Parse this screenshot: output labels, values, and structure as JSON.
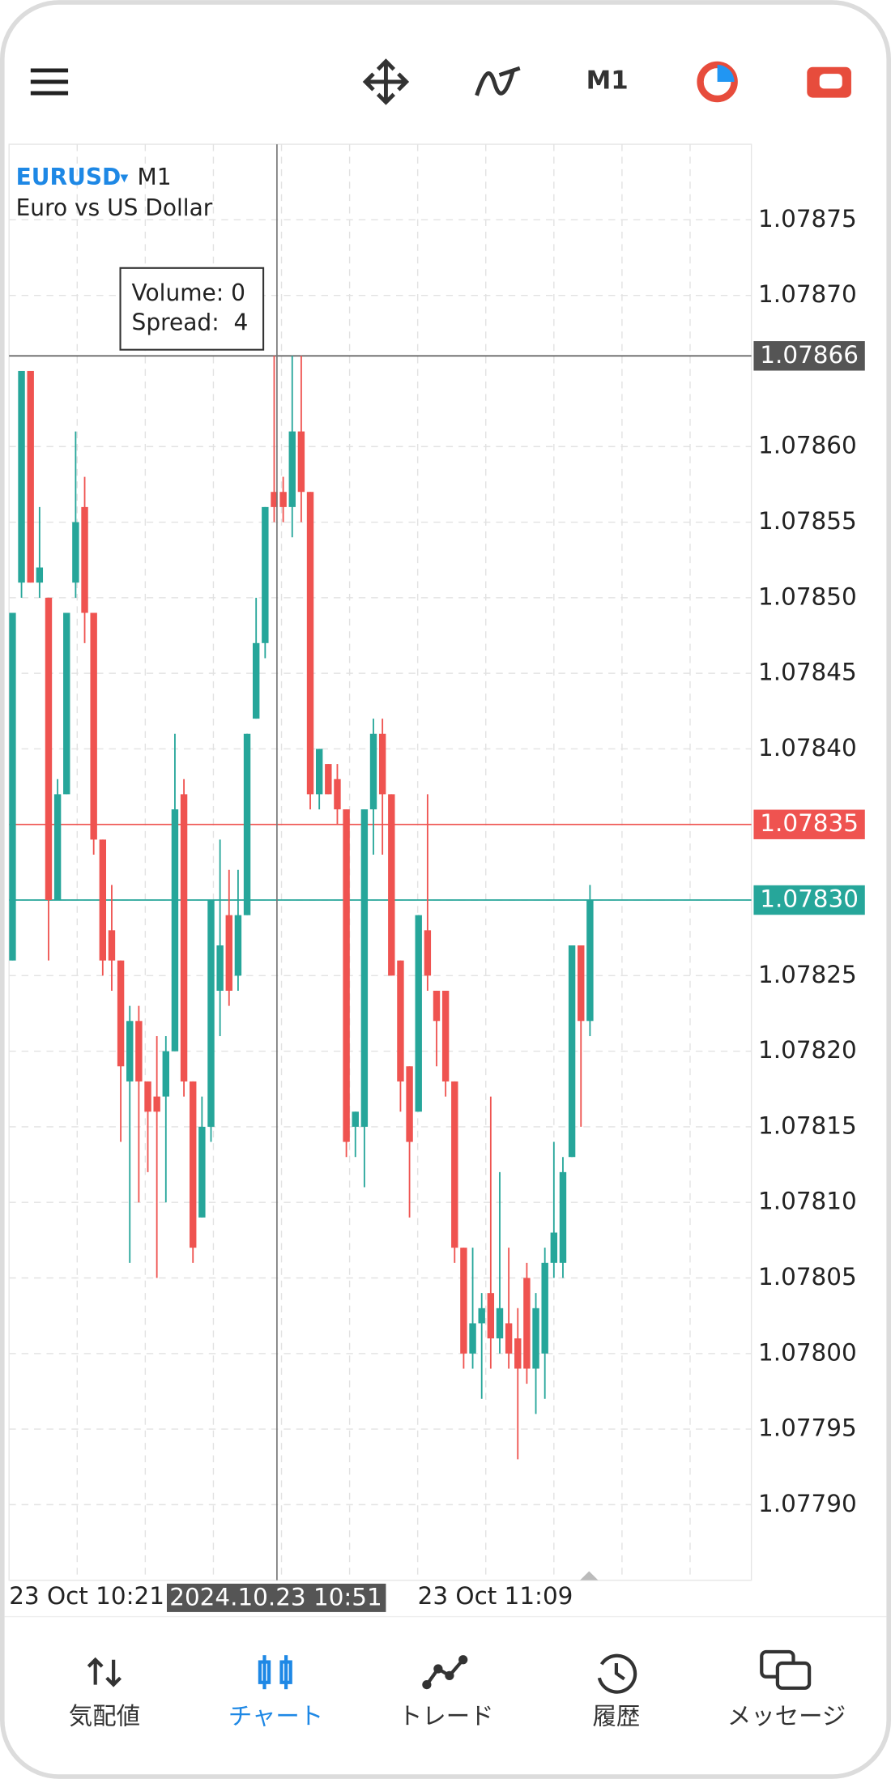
{
  "top_bar": {
    "timeframe": "M1"
  },
  "chart_data": {
    "type": "candlestick",
    "symbol": "EURUSD",
    "symbol_marker": "▾",
    "timeframe": "M1",
    "description": "Euro vs US Dollar",
    "colors": {
      "up": "#26a69a",
      "down": "#ef5350"
    },
    "grid": true,
    "ylim": [
      1.07785,
      1.0788
    ],
    "yticks": [
      1.07875,
      {
        "value": 1.0787,
        "label": "1.07870"
      },
      {
        "value": 1.0786,
        "label": "1.07860"
      },
      1.07855,
      {
        "value": 1.0785,
        "label": "1.07850"
      },
      1.07845,
      {
        "value": 1.0784,
        "label": "1.07840"
      },
      1.07835,
      {
        "value": 1.0783,
        "label": "1.07830"
      },
      1.07825,
      {
        "value": 1.0782,
        "label": "1.07820"
      },
      1.07815,
      {
        "value": 1.0781,
        "label": "1.07810"
      },
      1.07805,
      {
        "value": 1.078,
        "label": "1.07800"
      },
      1.07795,
      {
        "value": 1.0779,
        "label": "1.07790"
      }
    ],
    "open": [
      1.07826,
      1.07851,
      1.07865,
      1.07851,
      1.0785,
      1.0783,
      1.07837,
      1.07851,
      1.07856,
      1.07849,
      1.07834,
      1.07828,
      1.07826,
      1.07818,
      1.07822,
      1.07818,
      1.07817,
      1.07817,
      1.0782,
      1.07837,
      1.07818,
      1.07809,
      1.07815,
      1.07824,
      1.07829,
      1.07825,
      1.07829,
      1.07842,
      1.07847,
      1.07857,
      1.07857,
      1.07856,
      1.07861,
      1.07857,
      1.07837,
      1.07839,
      1.07838,
      1.07836,
      1.07815,
      1.07815,
      1.07836,
      1.07841,
      1.07837,
      1.07826,
      1.07819,
      1.07816,
      1.07828,
      1.07824,
      1.07824,
      1.07818,
      1.07807,
      1.078,
      1.07802,
      1.07804,
      1.07801,
      1.07802,
      1.07801,
      1.07805,
      1.07799,
      1.078,
      1.07806,
      1.07806,
      1.07813,
      1.07827,
      1.07822
    ],
    "high": [
      1.07849,
      1.07865,
      1.07865,
      1.07856,
      1.0785,
      1.07838,
      1.07849,
      1.07861,
      1.07858,
      1.07849,
      1.07834,
      1.07831,
      1.07826,
      1.07823,
      1.07823,
      1.07818,
      1.07821,
      1.07821,
      1.07841,
      1.07838,
      1.07818,
      1.07817,
      1.0783,
      1.07834,
      1.07832,
      1.07832,
      1.07841,
      1.0785,
      1.07856,
      1.07866,
      1.07858,
      1.07866,
      1.07866,
      1.07857,
      1.0784,
      1.07839,
      1.07839,
      1.07836,
      1.07816,
      1.07836,
      1.07842,
      1.07842,
      1.07837,
      1.07826,
      1.07819,
      1.07829,
      1.07837,
      1.07824,
      1.07824,
      1.07818,
      1.07807,
      1.07807,
      1.07804,
      1.07817,
      1.07812,
      1.07807,
      1.07803,
      1.07806,
      1.07804,
      1.07807,
      1.07814,
      1.07813,
      1.07827,
      1.07827,
      1.07831
    ],
    "low": [
      1.07826,
      1.0785,
      1.07851,
      1.0785,
      1.07826,
      1.0783,
      1.07837,
      1.0785,
      1.07847,
      1.07833,
      1.07825,
      1.07824,
      1.07814,
      1.07806,
      1.0781,
      1.07812,
      1.07805,
      1.0781,
      1.0782,
      1.07817,
      1.07806,
      1.07809,
      1.07814,
      1.07821,
      1.07823,
      1.07824,
      1.07829,
      1.07842,
      1.07846,
      1.07855,
      1.07855,
      1.07854,
      1.07855,
      1.07836,
      1.07836,
      1.07837,
      1.07835,
      1.07813,
      1.07813,
      1.07811,
      1.07833,
      1.07833,
      1.07825,
      1.07816,
      1.07809,
      1.07816,
      1.07824,
      1.07819,
      1.07817,
      1.07806,
      1.07799,
      1.07799,
      1.07797,
      1.07799,
      1.078,
      1.07799,
      1.07793,
      1.07798,
      1.07796,
      1.07797,
      1.07805,
      1.07805,
      1.07813,
      1.07815,
      1.07821
    ],
    "close": [
      1.07849,
      1.07865,
      1.07851,
      1.07852,
      1.0783,
      1.07837,
      1.07849,
      1.07855,
      1.07849,
      1.07834,
      1.07826,
      1.07826,
      1.07819,
      1.07822,
      1.07818,
      1.07816,
      1.07816,
      1.0782,
      1.07836,
      1.07818,
      1.07807,
      1.07815,
      1.0783,
      1.07827,
      1.07824,
      1.07829,
      1.07841,
      1.07847,
      1.07856,
      1.07856,
      1.07856,
      1.07861,
      1.07857,
      1.07837,
      1.0784,
      1.07837,
      1.07836,
      1.07814,
      1.07816,
      1.07836,
      1.07841,
      1.07837,
      1.07825,
      1.07818,
      1.07814,
      1.07829,
      1.07825,
      1.07822,
      1.07818,
      1.07807,
      1.078,
      1.07802,
      1.07803,
      1.07801,
      1.07803,
      1.078,
      1.07799,
      1.07799,
      1.07803,
      1.07806,
      1.07808,
      1.07812,
      1.07827,
      1.07822,
      1.0783
    ],
    "price_lines": [
      {
        "value": 1.07866,
        "color": "#555555"
      },
      {
        "value": 1.07835,
        "color": "#ef5350"
      },
      {
        "value": 1.0783,
        "label": "1.07830",
        "color": "#26a69a"
      }
    ]
  },
  "tooltip": {
    "volume": "Volume: 0",
    "spread": "Spread:  4"
  },
  "x_labels": [
    "23 Oct 10:21",
    "23 Oct 11:09"
  ],
  "crosshair": {
    "time": "2024.10.23 10:51"
  },
  "nav": [
    "気配値",
    "チャート",
    "トレード",
    "履歴",
    "メッセージ"
  ]
}
